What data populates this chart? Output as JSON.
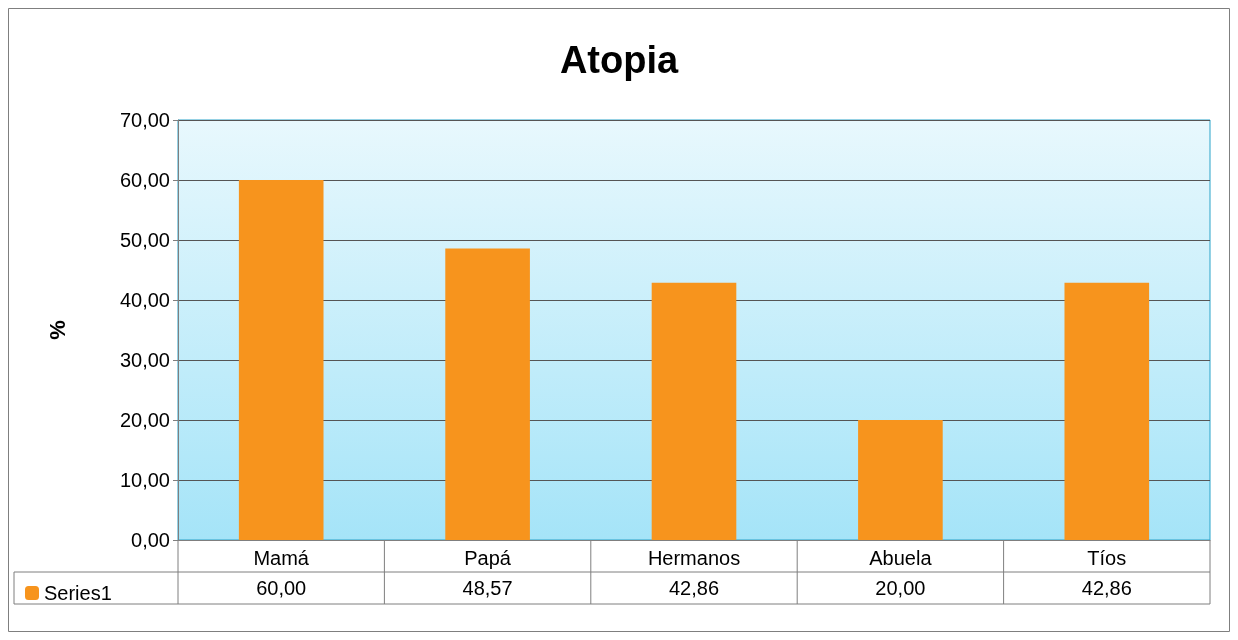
{
  "chart_data": {
    "type": "bar",
    "title": "Atopia",
    "ylabel": "%",
    "categories": [
      "Mamá",
      "Papá",
      "Hermanos",
      "Abuela",
      "Tíos"
    ],
    "series": [
      {
        "name": "Series1",
        "color": "#f7941d",
        "values": [
          60,
          48.57,
          42.86,
          20,
          42.86
        ],
        "value_labels": [
          "60,00",
          "48,57",
          "42,86",
          "20,00",
          "42,86"
        ]
      }
    ],
    "ylim": [
      0,
      70
    ],
    "yticks": [
      {
        "value": 0,
        "label": "0,00"
      },
      {
        "value": 10,
        "label": "10,00"
      },
      {
        "value": 20,
        "label": "20,00"
      },
      {
        "value": 30,
        "label": "30,00"
      },
      {
        "value": 40,
        "label": "40,00"
      },
      {
        "value": 50,
        "label": "50,00"
      },
      {
        "value": 60,
        "label": "60,00"
      },
      {
        "value": 70,
        "label": "70,00"
      }
    ],
    "grid": "y",
    "legend": "bottom left"
  }
}
